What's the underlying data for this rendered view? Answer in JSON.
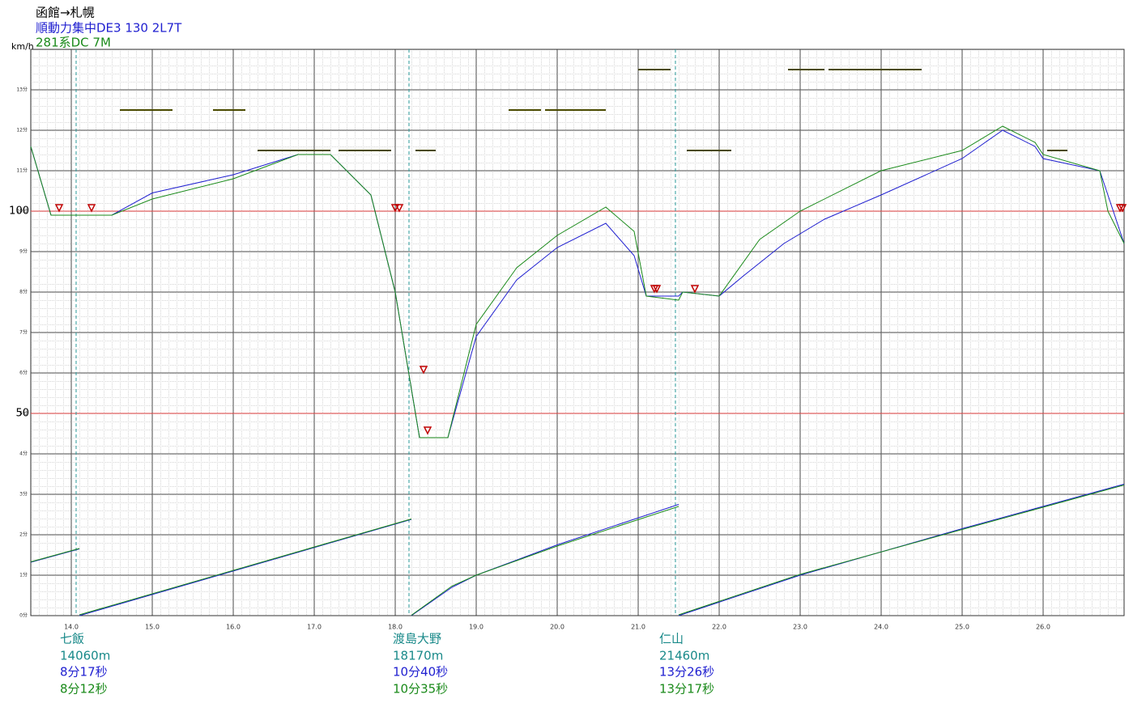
{
  "chart_data": {
    "type": "line",
    "title": "函館→札幌",
    "y_unit": "km/h",
    "xlim": [
      13.5,
      27.0
    ],
    "ylim": [
      0,
      140
    ],
    "xticks": [
      {
        "value": 14,
        "label": "14.0"
      },
      {
        "value": 15,
        "label": "15.0"
      },
      {
        "value": 16,
        "label": "16.0"
      },
      {
        "value": 17,
        "label": "17.0"
      },
      {
        "value": 18,
        "label": "18.0"
      },
      {
        "value": 19,
        "label": "19.0"
      },
      {
        "value": 20,
        "label": "20.0"
      },
      {
        "value": 21,
        "label": "21.0"
      },
      {
        "value": 22,
        "label": "22.0"
      },
      {
        "value": 23,
        "label": "23.0"
      },
      {
        "value": 24,
        "label": "24.0"
      },
      {
        "value": 25,
        "label": "25.0"
      },
      {
        "value": 26,
        "label": "26.0"
      }
    ],
    "yticks": [
      {
        "value": 0,
        "label": "0分"
      },
      {
        "value": 10,
        "label": "1分"
      },
      {
        "value": 20,
        "label": "2分"
      },
      {
        "value": 30,
        "label": "3分"
      },
      {
        "value": 40,
        "label": "4分"
      },
      {
        "value": 50,
        "label": "5分"
      },
      {
        "value": 60,
        "label": "6分"
      },
      {
        "value": 70,
        "label": "7分"
      },
      {
        "value": 80,
        "label": "8分"
      },
      {
        "value": 90,
        "label": "9分"
      },
      {
        "value": 100,
        "label": "10分"
      },
      {
        "value": 110,
        "label": "11分"
      },
      {
        "value": 120,
        "label": "12分"
      },
      {
        "value": 130,
        "label": "13分"
      }
    ],
    "ref_lines": [
      50,
      100
    ],
    "ref_color": "#e04040",
    "grid": true,
    "series": [
      {
        "name": "順動力集中DE3 130 2L7T",
        "color": "#1f1fd0",
        "x": [
          13.5,
          13.75,
          14.5,
          15.0,
          16.0,
          16.8,
          17.2,
          17.7,
          18.0,
          18.3,
          18.65,
          19.0,
          19.5,
          20.0,
          20.6,
          20.95,
          21.1,
          21.5,
          21.55,
          22.0,
          22.3,
          22.8,
          23.3,
          24.0,
          25.0,
          25.5,
          25.9,
          26.0,
          26.7,
          26.8,
          27.0
        ],
        "values": [
          116,
          99,
          99,
          104.5,
          109,
          114,
          114,
          104,
          80,
          44,
          44,
          69,
          83,
          91,
          97,
          89,
          79,
          79,
          80,
          79,
          84,
          92,
          98,
          104,
          113,
          120,
          116,
          113,
          110,
          104,
          92
        ]
      },
      {
        "name": "281系DC 7M",
        "color": "#1a8a1a",
        "x": [
          13.5,
          13.75,
          14.5,
          15.0,
          16.0,
          16.8,
          17.2,
          17.7,
          18.0,
          18.3,
          18.65,
          19.0,
          19.5,
          20.0,
          20.6,
          20.95,
          21.1,
          21.5,
          21.55,
          22.0,
          22.5,
          23.0,
          24.0,
          25.0,
          25.5,
          25.9,
          26.0,
          26.7,
          26.8,
          27.0
        ],
        "values": [
          116,
          99,
          99,
          103,
          108,
          114,
          114,
          104,
          80,
          44,
          44,
          72,
          86,
          94,
          101,
          95,
          79,
          78,
          80,
          79,
          93,
          100,
          110,
          115,
          121,
          117,
          114,
          110,
          100,
          92
        ]
      },
      {
        "color": "#1f1fd0",
        "x": [
          13.5,
          14.1,
          14.1,
          14.1,
          18.2,
          18.2,
          18.2,
          18.7,
          19.0,
          20.0,
          21.5,
          21.5,
          21.5,
          23.0,
          25.0,
          27.0
        ],
        "values": [
          13.2,
          16.5,
          null,
          0,
          23.8,
          null,
          0,
          7,
          10,
          17.5,
          27.5,
          null,
          0,
          10,
          21.5,
          32.5
        ]
      },
      {
        "color": "#1a8a1a",
        "x": [
          13.5,
          14.1,
          14.1,
          14.1,
          18.2,
          18.2,
          18.2,
          18.7,
          19.0,
          20.0,
          21.5,
          21.5,
          21.5,
          23.0,
          25.0,
          27.0
        ],
        "values": [
          13.3,
          16.6,
          null,
          0.2,
          23.9,
          null,
          0.1,
          7.3,
          10,
          17.2,
          27,
          null,
          0.2,
          10.2,
          21.3,
          32.3
        ]
      }
    ],
    "limit_color": "#4a4a00",
    "limits": [
      {
        "x": [
          14.6,
          15.25
        ],
        "value": 125
      },
      {
        "x": [
          15.75,
          16.15
        ],
        "value": 125
      },
      {
        "x": [
          16.3,
          17.2
        ],
        "value": 115
      },
      {
        "x": [
          17.3,
          17.95
        ],
        "value": 115
      },
      {
        "x": [
          18.25,
          18.5
        ],
        "value": 115
      },
      {
        "x": [
          19.4,
          19.8
        ],
        "value": 125
      },
      {
        "x": [
          19.85,
          20.6
        ],
        "value": 125
      },
      {
        "x": [
          21.0,
          21.4
        ],
        "value": 135
      },
      {
        "x": [
          21.6,
          22.15
        ],
        "value": 115
      },
      {
        "x": [
          22.85,
          23.3
        ],
        "value": 135
      },
      {
        "x": [
          23.35,
          24.5
        ],
        "value": 135
      },
      {
        "x": [
          26.05,
          26.3
        ],
        "value": 115
      }
    ],
    "marker_color": "#c00000",
    "markers": {
      "x": [
        13.85,
        14.25,
        18.0,
        18.05,
        18.35,
        18.4,
        21.2,
        21.23,
        21.7,
        26.95,
        26.98
      ],
      "values": [
        100.8,
        100.8,
        100.8,
        100.8,
        60.8,
        45.8,
        80.8,
        80.8,
        80.8,
        100.8,
        100.8
      ]
    },
    "stations": [
      {
        "x": 14.06,
        "name": "七飯",
        "distance": "14060m",
        "time_1": "8分17秒",
        "time_2": "8分12秒"
      },
      {
        "x": 18.17,
        "name": "渡島大野",
        "distance": "18170m",
        "time_1": "10分40秒",
        "time_2": "10分35秒"
      },
      {
        "x": 21.46,
        "name": "仁山",
        "distance": "21460m",
        "time_1": "13分26秒",
        "time_2": "13分17秒"
      }
    ]
  }
}
